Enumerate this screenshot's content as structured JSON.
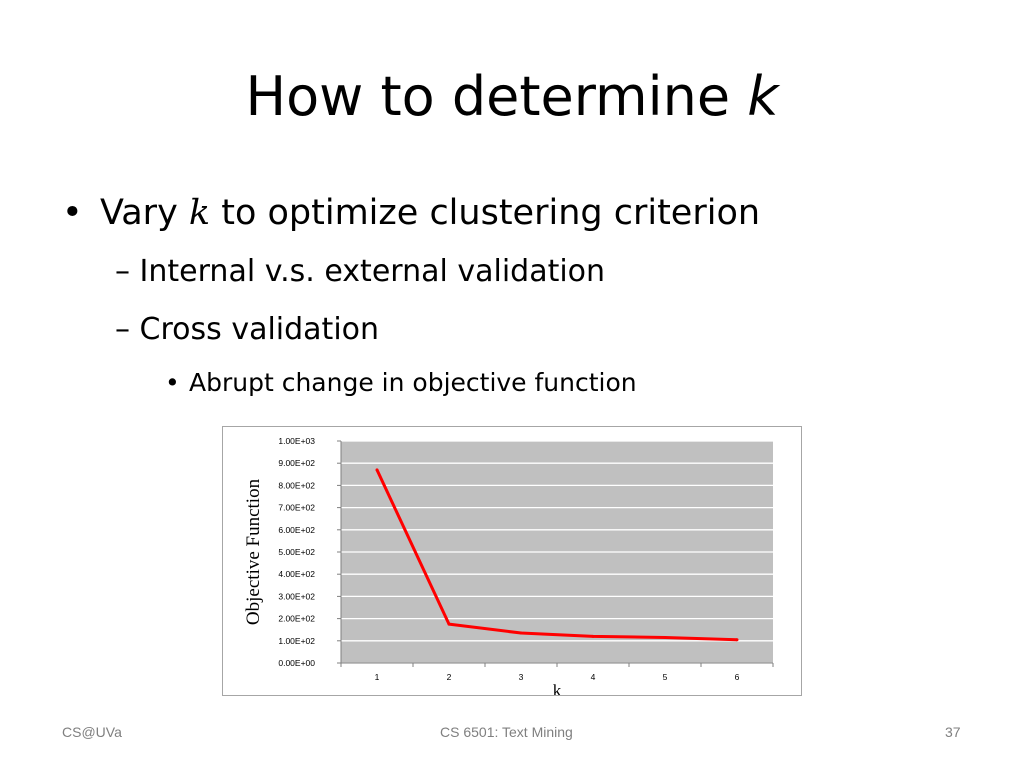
{
  "slide": {
    "title_main": "How to determine ",
    "title_var": "k",
    "bullet1_pre": "Vary ",
    "bullet1_var": "k",
    "bullet1_post": " to optimize clustering criterion",
    "bullet_marker": "•",
    "sub_marker": "–",
    "sub1": "Internal v.s. external validation",
    "sub2": "Cross validation",
    "subsub1": "Abrupt change in objective function"
  },
  "footer": {
    "left": "CS@UVa",
    "center": "CS 6501: Text Mining",
    "page": "37"
  },
  "chart_data": {
    "type": "line",
    "title": "",
    "xlabel": "k",
    "ylabel": "Objective Function",
    "categories": [
      "1",
      "2",
      "3",
      "4",
      "5",
      "6"
    ],
    "x": [
      1,
      2,
      3,
      4,
      5,
      6
    ],
    "series": [
      {
        "values": [
          870,
          175,
          135,
          120,
          115,
          105
        ],
        "color": "#ff0000"
      }
    ],
    "ylim": [
      0,
      1000
    ],
    "yticks": [
      0,
      100,
      200,
      300,
      400,
      500,
      600,
      700,
      800,
      900,
      1000
    ],
    "ytick_labels": [
      "0.00E+00",
      "1.00E+02",
      "2.00E+02",
      "3.00E+02",
      "4.00E+02",
      "5.00E+02",
      "6.00E+02",
      "7.00E+02",
      "8.00E+02",
      "9.00E+02",
      "1.00E+03"
    ],
    "grid": true,
    "legend": "none",
    "plot_background": "#c0c0c0",
    "gridline_color": "#ffffff"
  }
}
